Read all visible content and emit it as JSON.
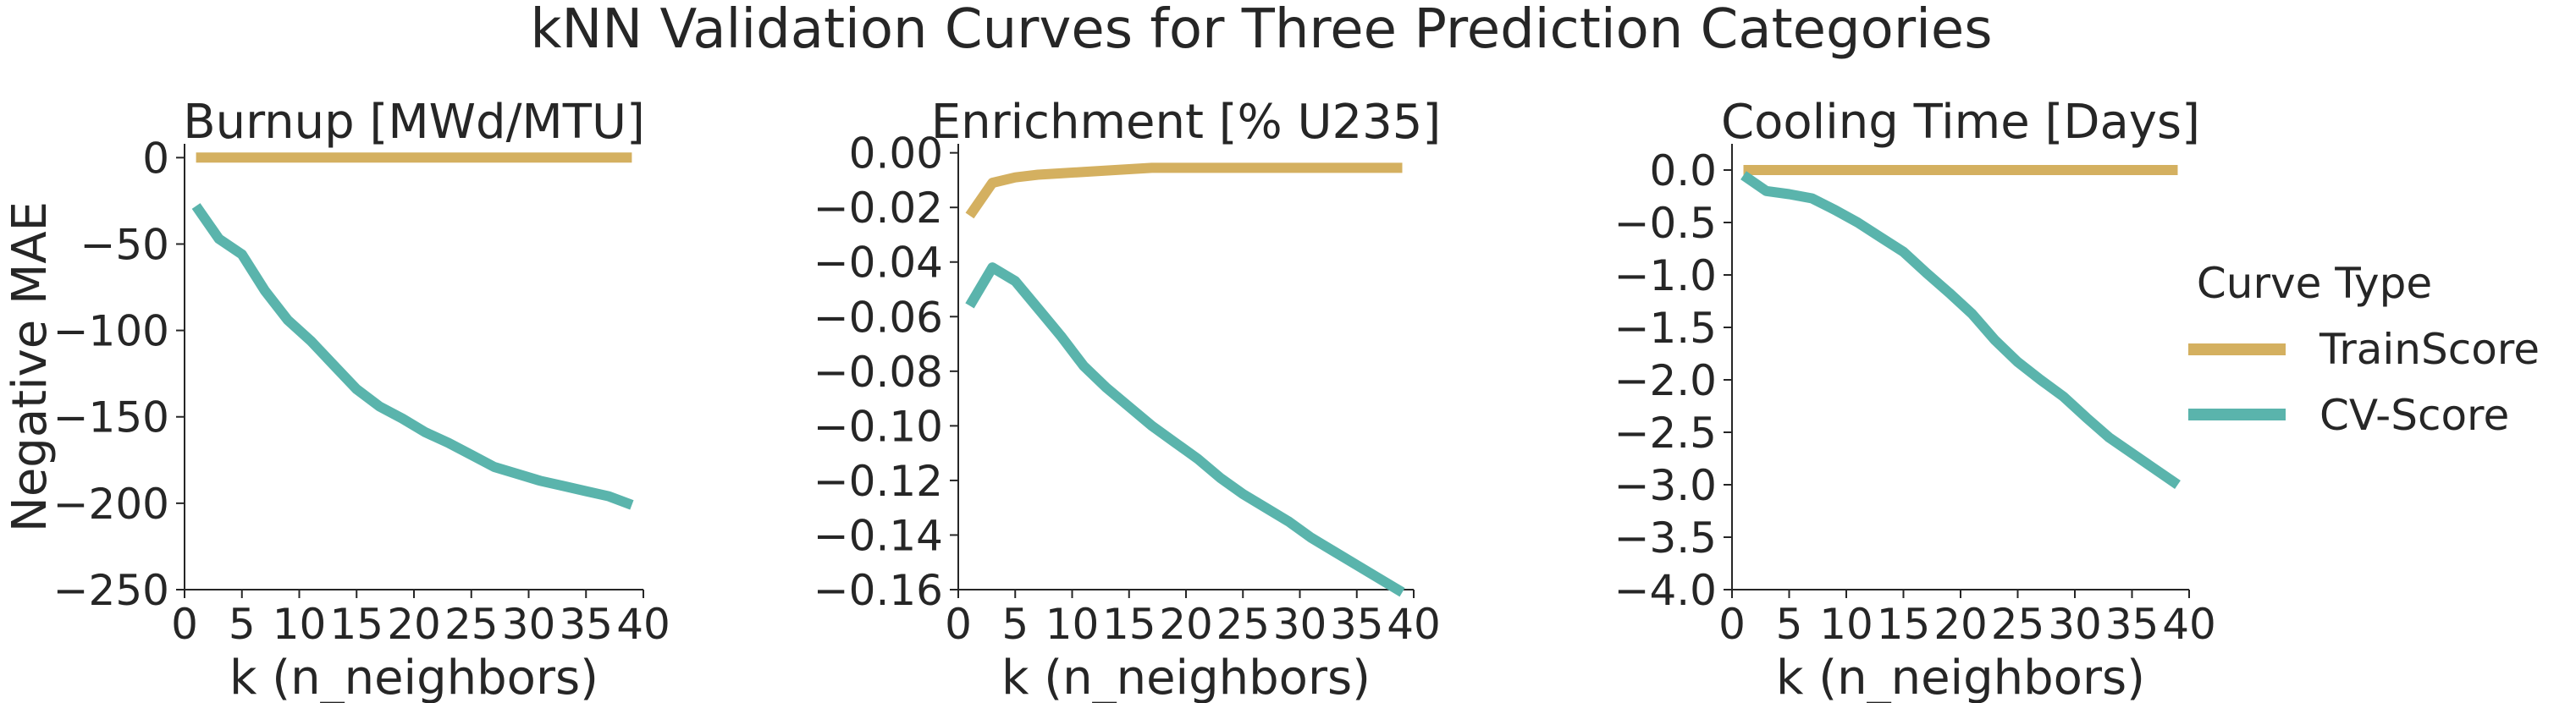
{
  "figure": {
    "suptitle": "kNN Validation Curves for Three Prediction Categories"
  },
  "legend": {
    "title": "Curve Type",
    "placement": "right",
    "entries": [
      {
        "label": "TrainScore",
        "color": "#d4b060"
      },
      {
        "label": "CV-Score",
        "color": "#5ab4ac"
      }
    ]
  },
  "chart_data": [
    {
      "type": "line",
      "title": "Burnup [MWd/MTU]",
      "xlabel": "k (n_neighbors)",
      "ylabel": "Negative MAE",
      "xlim": [
        0,
        40
      ],
      "ylim": [
        -250,
        8
      ],
      "xticks": [
        0,
        5,
        10,
        15,
        20,
        25,
        30,
        35,
        40
      ],
      "xtick_labels": [
        "0",
        "5",
        "10",
        "15",
        "20",
        "25",
        "30",
        "35",
        "40"
      ],
      "yticks": [
        0,
        -50,
        -100,
        -150,
        -200,
        -250
      ],
      "ytick_labels": [
        "0",
        "−50",
        "−100",
        "−150",
        "−200",
        "−250"
      ],
      "grid": false,
      "x": [
        1,
        3,
        5,
        7,
        9,
        11,
        13,
        15,
        17,
        19,
        21,
        23,
        25,
        27,
        29,
        31,
        33,
        35,
        37,
        39
      ],
      "series": [
        {
          "name": "TrainScore",
          "color": "#d4b060",
          "values": [
            0,
            0,
            0,
            0,
            0,
            0,
            0,
            0,
            0,
            0,
            0,
            0,
            0,
            0,
            0,
            0,
            0,
            0,
            0,
            0
          ]
        },
        {
          "name": "CV-Score",
          "color": "#5ab4ac",
          "values": [
            -28,
            -47,
            -56,
            -77,
            -94,
            -106,
            -120,
            -134,
            -144,
            -151,
            -159,
            -165,
            -172,
            -179,
            -183,
            -187,
            -190,
            -193,
            -196,
            -201
          ]
        }
      ]
    },
    {
      "type": "line",
      "title": "Enrichment [% U235]",
      "xlabel": "k (n_neighbors)",
      "ylabel": "",
      "xlim": [
        0,
        40
      ],
      "ylim": [
        -0.16,
        0.0033
      ],
      "xticks": [
        0,
        5,
        10,
        15,
        20,
        25,
        30,
        35,
        40
      ],
      "xtick_labels": [
        "0",
        "5",
        "10",
        "15",
        "20",
        "25",
        "30",
        "35",
        "40"
      ],
      "yticks": [
        0,
        -0.02,
        -0.04,
        -0.06,
        -0.08,
        -0.1,
        -0.12,
        -0.14,
        -0.16
      ],
      "ytick_labels": [
        "0.00",
        "−0.02",
        "−0.04",
        "−0.06",
        "−0.08",
        "−0.10",
        "−0.12",
        "−0.14",
        "−0.16"
      ],
      "grid": false,
      "x": [
        1,
        3,
        5,
        7,
        9,
        11,
        13,
        15,
        17,
        19,
        21,
        23,
        25,
        27,
        29,
        31,
        33,
        35,
        37,
        39
      ],
      "series": [
        {
          "name": "TrainScore",
          "color": "#d4b060",
          "values": [
            -0.023,
            -0.011,
            -0.009,
            -0.008,
            -0.0075,
            -0.007,
            -0.0065,
            -0.006,
            -0.0055,
            -0.0055,
            -0.0055,
            -0.0055,
            -0.0055,
            -0.0055,
            -0.0055,
            -0.0055,
            -0.0055,
            -0.0055,
            -0.0055,
            -0.0055
          ]
        },
        {
          "name": "CV-Score",
          "color": "#5ab4ac",
          "values": [
            -0.056,
            -0.042,
            -0.047,
            -0.057,
            -0.067,
            -0.078,
            -0.086,
            -0.093,
            -0.1,
            -0.106,
            -0.112,
            -0.119,
            -0.125,
            -0.13,
            -0.135,
            -0.141,
            -0.146,
            -0.151,
            -0.156,
            -0.161
          ]
        }
      ]
    },
    {
      "type": "line",
      "title": "Cooling Time [Days]",
      "xlabel": "k (n_neighbors)",
      "ylabel": "",
      "xlim": [
        0,
        40
      ],
      "ylim": [
        -4.0,
        0.25
      ],
      "xticks": [
        0,
        5,
        10,
        15,
        20,
        25,
        30,
        35,
        40
      ],
      "xtick_labels": [
        "0",
        "5",
        "10",
        "15",
        "20",
        "25",
        "30",
        "35",
        "40"
      ],
      "yticks": [
        0,
        -0.5,
        -1.0,
        -1.5,
        -2.0,
        -2.5,
        -3.0,
        -3.5,
        -4.0
      ],
      "ytick_labels": [
        "0.0",
        "−0.5",
        "−1.0",
        "−1.5",
        "−2.0",
        "−2.5",
        "−3.0",
        "−3.5",
        "−4.0"
      ],
      "grid": false,
      "x": [
        1,
        3,
        5,
        7,
        9,
        11,
        13,
        15,
        17,
        19,
        21,
        23,
        25,
        27,
        29,
        31,
        33,
        35,
        37,
        39
      ],
      "series": [
        {
          "name": "TrainScore",
          "color": "#d4b060",
          "values": [
            0,
            0,
            0,
            0,
            0,
            0,
            0,
            0,
            0,
            0,
            0,
            0,
            0,
            0,
            0,
            0,
            0,
            0,
            0,
            0
          ]
        },
        {
          "name": "CV-Score",
          "color": "#5ab4ac",
          "values": [
            -0.05,
            -0.2,
            -0.23,
            -0.27,
            -0.38,
            -0.5,
            -0.64,
            -0.78,
            -0.98,
            -1.17,
            -1.37,
            -1.62,
            -1.83,
            -2.0,
            -2.16,
            -2.36,
            -2.55,
            -2.7,
            -2.85,
            -3.0
          ]
        }
      ]
    }
  ]
}
